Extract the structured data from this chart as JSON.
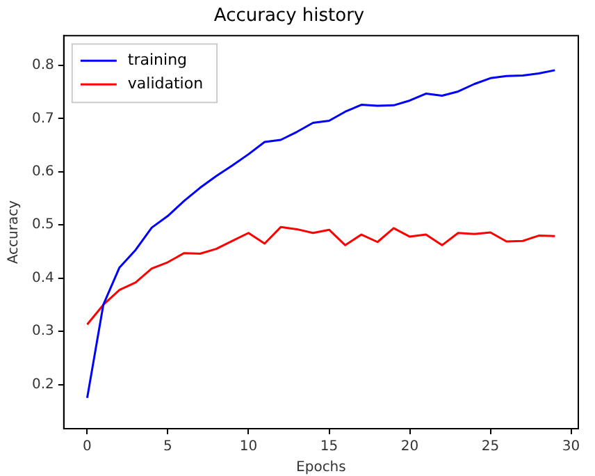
{
  "chart_data": {
    "type": "line",
    "title": "Accuracy history",
    "xlabel": "Epochs",
    "ylabel": "Accuracy",
    "x": [
      0,
      1,
      2,
      3,
      4,
      5,
      6,
      7,
      8,
      9,
      10,
      11,
      12,
      13,
      14,
      15,
      16,
      17,
      18,
      19,
      20,
      21,
      22,
      23,
      24,
      25,
      26,
      27,
      28,
      29
    ],
    "series": [
      {
        "name": "training",
        "color": "#0000ff",
        "values": [
          0.175,
          0.35,
          0.42,
          0.453,
          0.495,
          0.517,
          0.545,
          0.57,
          0.592,
          0.612,
          0.633,
          0.656,
          0.66,
          0.675,
          0.692,
          0.696,
          0.713,
          0.726,
          0.724,
          0.725,
          0.734,
          0.747,
          0.743,
          0.751,
          0.765,
          0.776,
          0.78,
          0.781,
          0.785,
          0.791
        ]
      },
      {
        "name": "validation",
        "color": "#ff0000",
        "values": [
          0.313,
          0.35,
          0.378,
          0.392,
          0.418,
          0.43,
          0.447,
          0.446,
          0.455,
          0.47,
          0.485,
          0.465,
          0.496,
          0.492,
          0.485,
          0.491,
          0.462,
          0.482,
          0.468,
          0.494,
          0.478,
          0.482,
          0.462,
          0.485,
          0.483,
          0.486,
          0.469,
          0.47,
          0.48,
          0.479
        ]
      }
    ],
    "xlim": [
      -1.45,
      30.45
    ],
    "xticks": [
      0,
      5,
      10,
      15,
      20,
      25,
      30
    ],
    "ylim": [
      0.117,
      0.856
    ],
    "yticks": [
      0.2,
      0.3,
      0.4,
      0.5,
      0.6,
      0.7,
      0.8
    ],
    "grid": false,
    "legend": "top left",
    "marker": "none",
    "line_style": "solid"
  }
}
